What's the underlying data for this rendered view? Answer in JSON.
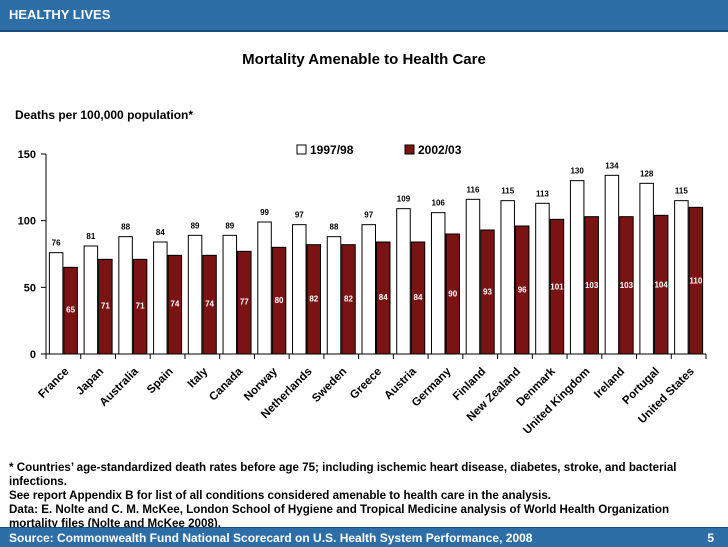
{
  "header": {
    "label": "HEALTHY LIVES"
  },
  "footer": {
    "source": "Source: Commonwealth Fund National Scorecard on U.S. Health System Performance, 2008",
    "page_number": "5"
  },
  "notes": {
    "line1": "* Countries’ age-standardized death rates before age 75; including ischemic heart disease, diabetes, stroke, and bacterial infections.",
    "line2": "See report Appendix B for list of all conditions considered amenable to health care in the analysis.",
    "line3": "Data: E. Nolte and C. M. McKee, London School of Hygiene and Tropical Medicine analysis of World Health Organization mortality files (Nolte and McKee 2008)."
  },
  "colors": {
    "series1_fill": "#ffffff",
    "series2_fill": "#7a1414",
    "bar_stroke": "#000000",
    "series2_label": "#ffffff"
  },
  "chart_data": {
    "type": "bar",
    "title": "Mortality Amenable to Health Care",
    "xlabel": "",
    "ylabel": "Deaths per 100,000 population*",
    "ylim": [
      0,
      150
    ],
    "yticks": [
      "0",
      "50",
      "100",
      "150"
    ],
    "legend_position": "top-center",
    "categories": [
      "France",
      "Japan",
      "Australia",
      "Spain",
      "Italy",
      "Canada",
      "Norway",
      "Netherlands",
      "Sweden",
      "Greece",
      "Austria",
      "Germany",
      "Finland",
      "New Zealand",
      "Denmark",
      "United Kingdom",
      "Ireland",
      "Portugal",
      "United States"
    ],
    "series": [
      {
        "name": "1997/98",
        "values": [
          76,
          81,
          88,
          84,
          89,
          89,
          99,
          97,
          88,
          97,
          109,
          106,
          116,
          115,
          113,
          130,
          134,
          128,
          115
        ]
      },
      {
        "name": "2002/03",
        "values": [
          65,
          71,
          71,
          74,
          74,
          77,
          80,
          82,
          82,
          84,
          84,
          90,
          93,
          96,
          101,
          103,
          103,
          104,
          110
        ]
      }
    ]
  }
}
